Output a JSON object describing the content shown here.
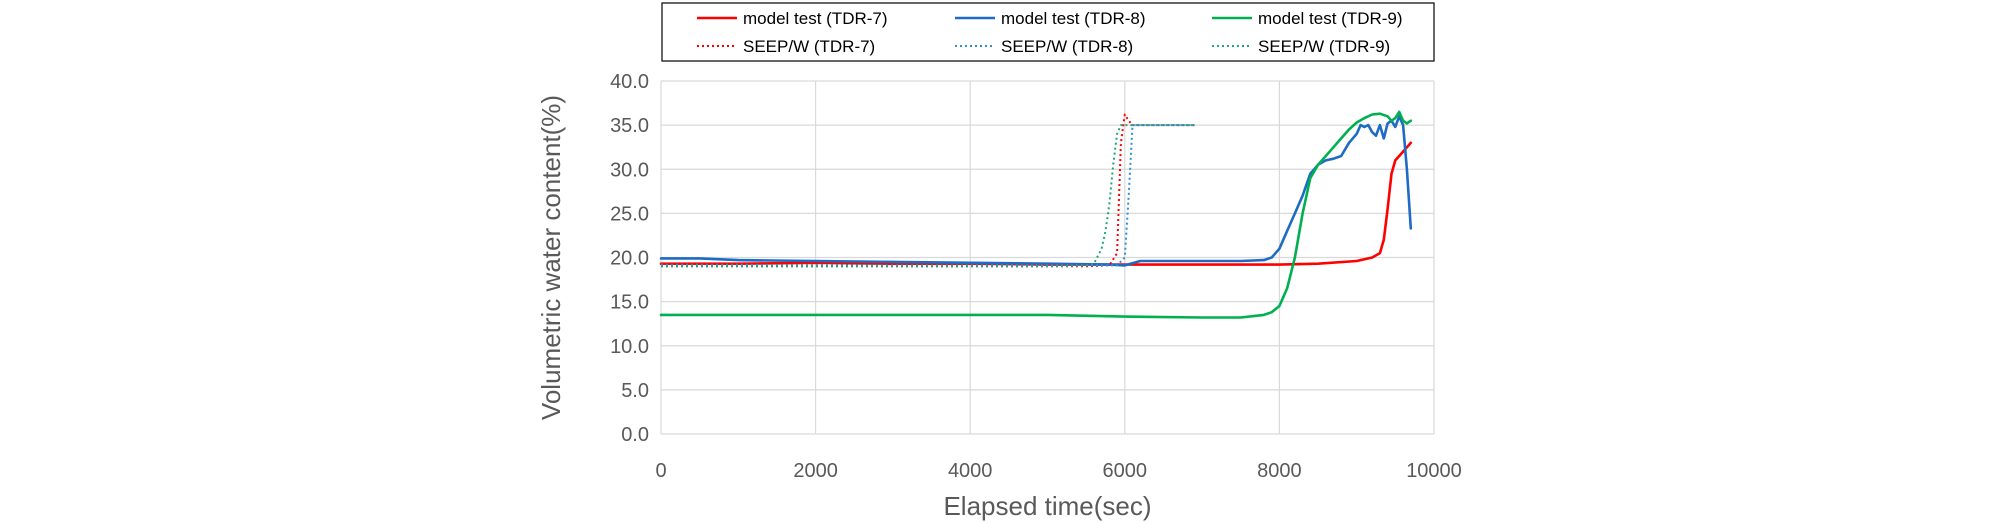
{
  "chart_data": {
    "type": "line",
    "title": "",
    "xlabel": "Elapsed time(sec)",
    "ylabel": "Volumetric water content(%)",
    "xlim": [
      0,
      10000
    ],
    "ylim": [
      0,
      40
    ],
    "xticks": [
      "0",
      "2000",
      "4000",
      "6000",
      "8000",
      "10000"
    ],
    "yticks": [
      "0.0",
      "5.0",
      "10.0",
      "15.0",
      "20.0",
      "25.0",
      "30.0",
      "35.0",
      "40.0"
    ],
    "grid": true,
    "legend_position": "top",
    "series": [
      {
        "name": "model test (TDR-7)",
        "color": "#ff0000",
        "style": "solid",
        "x": [
          0,
          1000,
          2000,
          3000,
          4000,
          5000,
          6000,
          7000,
          8000,
          8500,
          9000,
          9200,
          9300,
          9350,
          9400,
          9450,
          9500,
          9550,
          9600,
          9700
        ],
        "y": [
          19.3,
          19.3,
          19.4,
          19.3,
          19.3,
          19.2,
          19.2,
          19.2,
          19.2,
          19.3,
          19.6,
          20.0,
          20.5,
          22.0,
          25.5,
          29.5,
          31.0,
          31.5,
          32.0,
          33.0
        ]
      },
      {
        "name": "model test (TDR-8)",
        "color": "#1f6bc4",
        "style": "solid",
        "x": [
          0,
          500,
          1000,
          2000,
          3000,
          4000,
          5000,
          5800,
          6000,
          6200,
          7000,
          7500,
          7800,
          7900,
          8000,
          8100,
          8200,
          8300,
          8400,
          8500,
          8600,
          8700,
          8800,
          8900,
          9000,
          9050,
          9100,
          9150,
          9200,
          9250,
          9300,
          9350,
          9400,
          9450,
          9500,
          9550,
          9600,
          9650,
          9700
        ],
        "y": [
          19.9,
          19.9,
          19.7,
          19.6,
          19.5,
          19.4,
          19.3,
          19.2,
          19.1,
          19.6,
          19.6,
          19.6,
          19.7,
          20.0,
          21.0,
          23.0,
          25.0,
          27.0,
          29.5,
          30.5,
          31.0,
          31.2,
          31.5,
          33.0,
          34.0,
          35.0,
          34.8,
          35.0,
          34.2,
          33.8,
          35.0,
          33.5,
          35.2,
          35.5,
          34.8,
          36.0,
          35.0,
          30.0,
          23.3
        ]
      },
      {
        "name": "model test (TDR-9)",
        "color": "#00b050",
        "style": "solid",
        "x": [
          0,
          1000,
          2000,
          3000,
          4000,
          5000,
          6000,
          7000,
          7500,
          7800,
          7900,
          8000,
          8100,
          8200,
          8300,
          8400,
          8500,
          8600,
          8700,
          8800,
          8900,
          9000,
          9100,
          9200,
          9300,
          9400,
          9450,
          9500,
          9550,
          9600,
          9650,
          9700
        ],
        "y": [
          13.5,
          13.5,
          13.5,
          13.5,
          13.5,
          13.5,
          13.3,
          13.2,
          13.2,
          13.5,
          13.8,
          14.5,
          16.5,
          20.0,
          25.0,
          29.0,
          30.5,
          31.5,
          32.5,
          33.5,
          34.5,
          35.3,
          35.8,
          36.2,
          36.3,
          36.0,
          35.5,
          35.8,
          36.5,
          35.5,
          35.2,
          35.5
        ]
      },
      {
        "name": "SEEP/W (TDR-7)",
        "color": "#ff0000",
        "style": "dotted",
        "x": [
          0,
          1000,
          2000,
          3000,
          4000,
          5000,
          5500,
          5800,
          5900,
          5950,
          6000,
          6050,
          6100,
          6200,
          6500,
          6900
        ],
        "y": [
          19.0,
          19.0,
          19.0,
          19.0,
          19.0,
          19.0,
          19.0,
          19.1,
          20.5,
          33.0,
          36.2,
          35.5,
          35.0,
          35.0,
          35.0,
          35.0
        ]
      },
      {
        "name": "SEEP/W (TDR-8)",
        "color": "#2e8fd6",
        "style": "dotted",
        "x": [
          0,
          1000,
          2000,
          3000,
          4000,
          5000,
          5500,
          5900,
          6000,
          6050,
          6100,
          6150,
          6200,
          6500,
          6900
        ],
        "y": [
          19.2,
          19.2,
          19.1,
          19.1,
          19.1,
          19.1,
          19.1,
          19.1,
          20.0,
          27.0,
          35.0,
          35.0,
          35.0,
          35.0,
          35.0
        ]
      },
      {
        "name": "SEEP/W (TDR-9)",
        "color": "#21a57a",
        "style": "dotted",
        "x": [
          0,
          1000,
          2000,
          3000,
          4000,
          5000,
          5500,
          5600,
          5700,
          5750,
          5800,
          5850,
          5900,
          5950,
          6000,
          6100,
          6500,
          6900
        ],
        "y": [
          19.0,
          19.0,
          19.0,
          19.0,
          19.0,
          19.0,
          19.1,
          19.3,
          21.0,
          23.0,
          26.0,
          30.5,
          34.0,
          35.0,
          35.0,
          35.0,
          35.0,
          35.0
        ]
      }
    ]
  }
}
